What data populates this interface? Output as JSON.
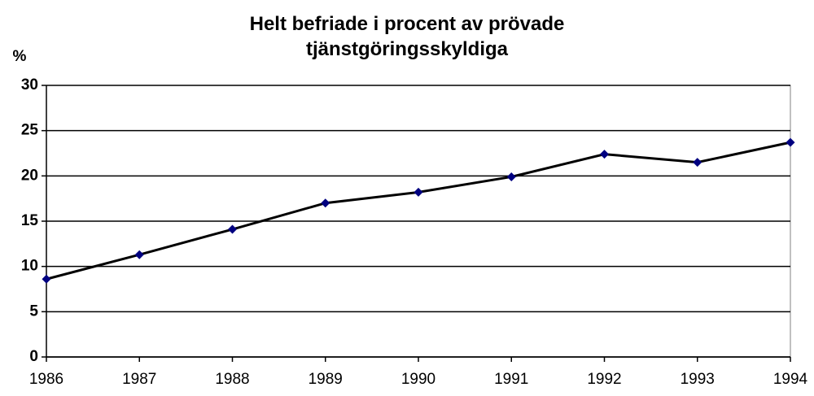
{
  "chart_data": {
    "type": "line",
    "title": "Helt befriade i procent av prövade tjänstgöringsskyldiga",
    "y_label": "%",
    "x": [
      1986,
      1987,
      1988,
      1989,
      1990,
      1991,
      1992,
      1993,
      1994
    ],
    "series": [
      {
        "values": [
          8.6,
          11.3,
          14.1,
          17.0,
          18.2,
          19.9,
          22.4,
          21.5,
          23.7
        ],
        "color": "#000000",
        "marker_color": "#000080"
      }
    ],
    "xlim": [
      1986,
      1994
    ],
    "xticks": [
      1986,
      1987,
      1988,
      1989,
      1990,
      1991,
      1992,
      1993,
      1994
    ],
    "ylim": [
      0,
      30
    ],
    "yticks": [
      0,
      5,
      10,
      15,
      20,
      25,
      30
    ],
    "grid": true
  }
}
